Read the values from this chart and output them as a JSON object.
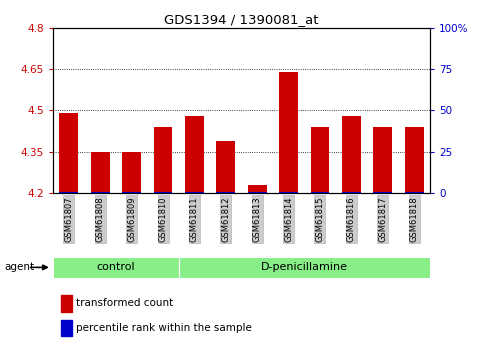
{
  "title": "GDS1394 / 1390081_at",
  "samples": [
    "GSM61807",
    "GSM61808",
    "GSM61809",
    "GSM61810",
    "GSM61811",
    "GSM61812",
    "GSM61813",
    "GSM61814",
    "GSM61815",
    "GSM61816",
    "GSM61817",
    "GSM61818"
  ],
  "red_values": [
    4.49,
    4.35,
    4.35,
    4.44,
    4.48,
    4.39,
    4.23,
    4.64,
    4.44,
    4.48,
    4.44,
    4.44
  ],
  "blue_values": [
    4.213,
    4.212,
    4.212,
    4.213,
    4.212,
    4.213,
    4.212,
    4.213,
    4.213,
    4.213,
    4.213,
    4.213
  ],
  "blue_heights": [
    0.006,
    0.005,
    0.005,
    0.006,
    0.005,
    0.006,
    0.005,
    0.006,
    0.006,
    0.006,
    0.006,
    0.006
  ],
  "ymin": 4.2,
  "ymax": 4.8,
  "y_ticks_left": [
    4.2,
    4.35,
    4.5,
    4.65,
    4.8
  ],
  "y_ticks_right": [
    0,
    25,
    50,
    75,
    100
  ],
  "bar_width": 0.6,
  "red_color": "#cc0000",
  "blue_color": "#0000cc",
  "n_control": 4,
  "control_label": "control",
  "treatment_label": "D-penicillamine",
  "agent_label": "agent",
  "legend_red": "transformed count",
  "legend_blue": "percentile rank within the sample",
  "group_bar_color": "#88ee88",
  "tick_label_color_left": "#cc0000",
  "tick_label_color_right": "#0000cc",
  "sample_bg_color": "#cccccc",
  "fig_bg_color": "#ffffff"
}
